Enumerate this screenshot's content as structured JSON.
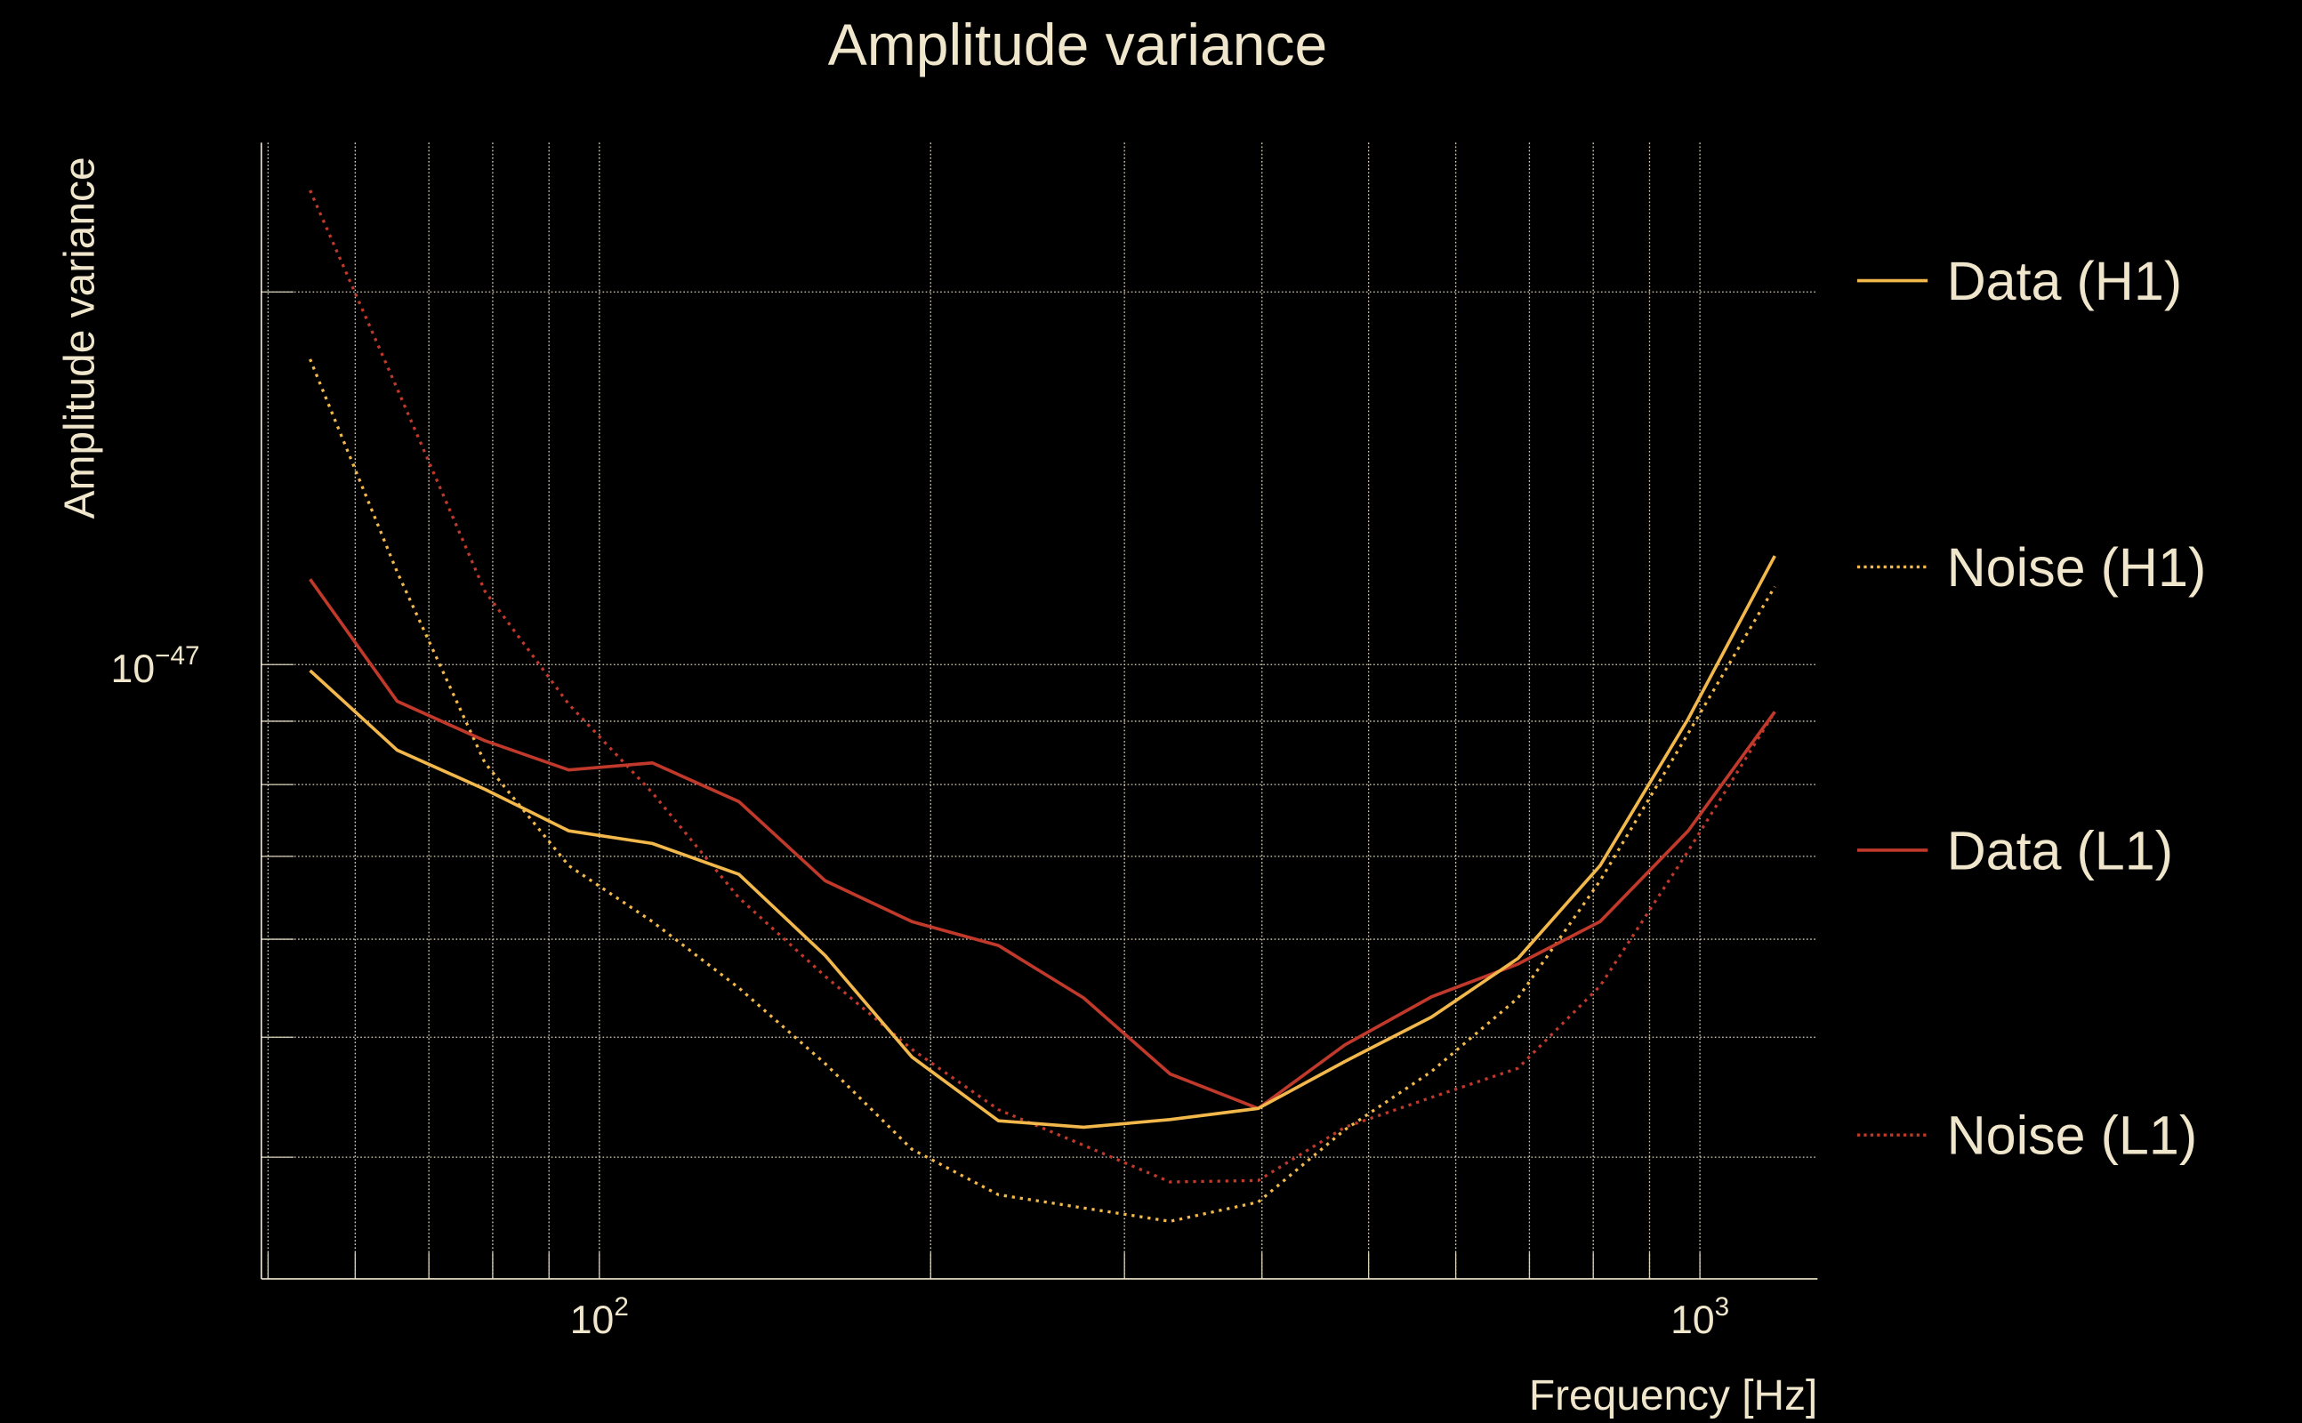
{
  "chart_data": {
    "type": "line",
    "title": "Amplitude variance",
    "xlabel": "Frequency [Hz]",
    "ylabel": "Amplitude variance",
    "xscale": "log",
    "yscale": "log",
    "xlim": [
      49.3,
      1279
    ],
    "ylim": [
      3.19e-48,
      2.64e-47
    ],
    "grid": true,
    "legend_position": "right-outside",
    "x_ticks": [
      {
        "value": 100,
        "base": "10",
        "exp": "2"
      },
      {
        "value": 1000,
        "base": "10",
        "exp": "3"
      }
    ],
    "y_ticks": [
      {
        "value": 1e-47,
        "base": "10",
        "exp": "−47"
      }
    ],
    "x_minor_grid": [
      50,
      60,
      70,
      80,
      90,
      200,
      300,
      400,
      500,
      600,
      700,
      800,
      900
    ],
    "y_minor_grid": [
      4e-48,
      5e-48,
      6e-48,
      7e-48,
      8e-48,
      9e-48,
      2e-47
    ],
    "x": [
      54.6,
      65.5,
      78.7,
      93.8,
      111.7,
      133.9,
      160.4,
      192.3,
      230.5,
      275.4,
      330.1,
      396.9,
      475.8,
      570.2,
      683.4,
      811.6,
      975.7,
      1169.5
    ],
    "series": [
      {
        "name": "Data (H1)",
        "color": "#f2b84b",
        "style": "solid",
        "values": [
          9.89e-48,
          8.53e-48,
          7.93e-48,
          7.34e-48,
          7.17e-48,
          6.77e-48,
          5.82e-48,
          4.82e-48,
          4.28e-48,
          4.23e-48,
          4.29e-48,
          4.38e-48,
          4.78e-48,
          5.19e-48,
          5.79e-48,
          6.88e-48,
          9.04e-48,
          1.224e-47
        ]
      },
      {
        "name": "Noise (H1)",
        "color": "#f2b84b",
        "style": "dotted",
        "values": [
          1.765e-47,
          1.188e-47,
          8.33e-48,
          6.88e-48,
          6.2e-48,
          5.48e-48,
          4.76e-48,
          4.06e-48,
          3.73e-48,
          3.64e-48,
          3.55e-48,
          3.68e-48,
          4.21e-48,
          4.69e-48,
          5.38e-48,
          6.69e-48,
          8.8e-48,
          1.156e-47
        ]
      },
      {
        "name": "Data (L1)",
        "color": "#c0392b",
        "style": "solid",
        "values": [
          1.172e-47,
          9.34e-48,
          8.68e-48,
          8.22e-48,
          8.33e-48,
          7.75e-48,
          6.69e-48,
          6.2e-48,
          5.93e-48,
          5.38e-48,
          4.67e-48,
          4.38e-48,
          4.93e-48,
          5.39e-48,
          5.73e-48,
          6.2e-48,
          7.34e-48,
          9.16e-48
        ]
      },
      {
        "name": "Noise (L1)",
        "color": "#c0392b",
        "style": "dotted",
        "values": [
          2.416e-47,
          1.671e-47,
          1.146e-47,
          9.29e-48,
          7.88e-48,
          6.48e-48,
          5.6e-48,
          4.89e-48,
          4.37e-48,
          4.09e-48,
          3.82e-48,
          3.83e-48,
          4.23e-48,
          4.47e-48,
          4.72e-48,
          5.5e-48,
          7.07e-48,
          9.16e-48
        ]
      }
    ]
  }
}
